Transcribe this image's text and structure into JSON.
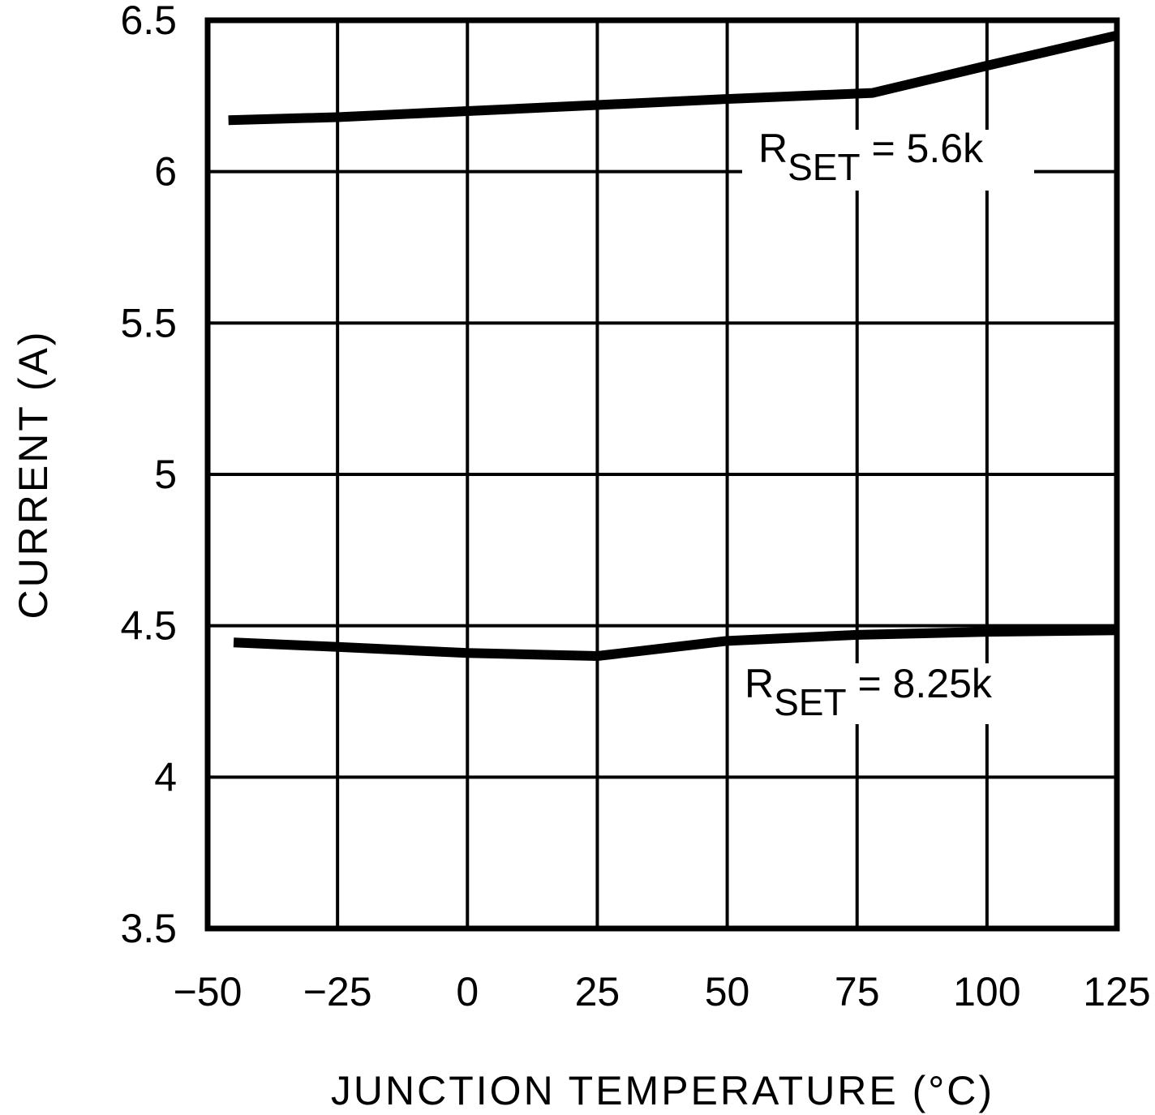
{
  "chart_data": {
    "type": "line",
    "title": "",
    "xlabel": "JUNCTION TEMPERATURE (°C)",
    "ylabel": "CURRENT (A)",
    "xlim": [
      -50,
      125
    ],
    "ylim": [
      3.5,
      6.5
    ],
    "xticks": [
      "-50",
      "-25",
      "0",
      "25",
      "50",
      "75",
      "100",
      "125"
    ],
    "yticks": [
      "3.5",
      "4",
      "4.5",
      "5",
      "5.5",
      "6",
      "6.5"
    ],
    "grid": true,
    "legend_position": "inline annotations",
    "series": [
      {
        "name": "RSET = 5.6k",
        "label_main": "R",
        "label_sub": "SET",
        "label_value": " = 5.6k",
        "x": [
          -46,
          -25,
          0,
          25,
          50,
          78,
          100,
          125
        ],
        "values": [
          6.17,
          6.18,
          6.2,
          6.22,
          6.24,
          6.26,
          6.35,
          6.45
        ]
      },
      {
        "name": "RSET = 8.25k",
        "label_main": "R",
        "label_sub": "SET",
        "label_value": " = 8.25k",
        "x": [
          -45,
          -25,
          0,
          25,
          50,
          75,
          100,
          125
        ],
        "values": [
          4.445,
          4.43,
          4.41,
          4.4,
          4.45,
          4.47,
          4.48,
          4.485
        ]
      }
    ]
  }
}
